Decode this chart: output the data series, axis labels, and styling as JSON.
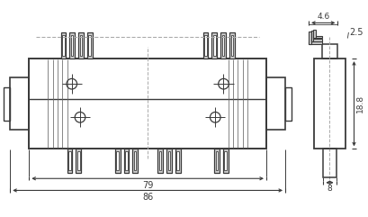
{
  "bg_color": "#ffffff",
  "line_color": "#3a3a3a",
  "dim_color": "#3a3a3a",
  "dashed_color": "#aaaaaa",
  "gray_fill": "#cccccc",
  "figsize": [
    4.1,
    2.41
  ],
  "dpi": 100,
  "dim_86": "86",
  "dim_79": "79",
  "dim_4_6": "4.6",
  "dim_2_5": "2.5",
  "dim_18_8": "18.8",
  "dim_8": "8"
}
